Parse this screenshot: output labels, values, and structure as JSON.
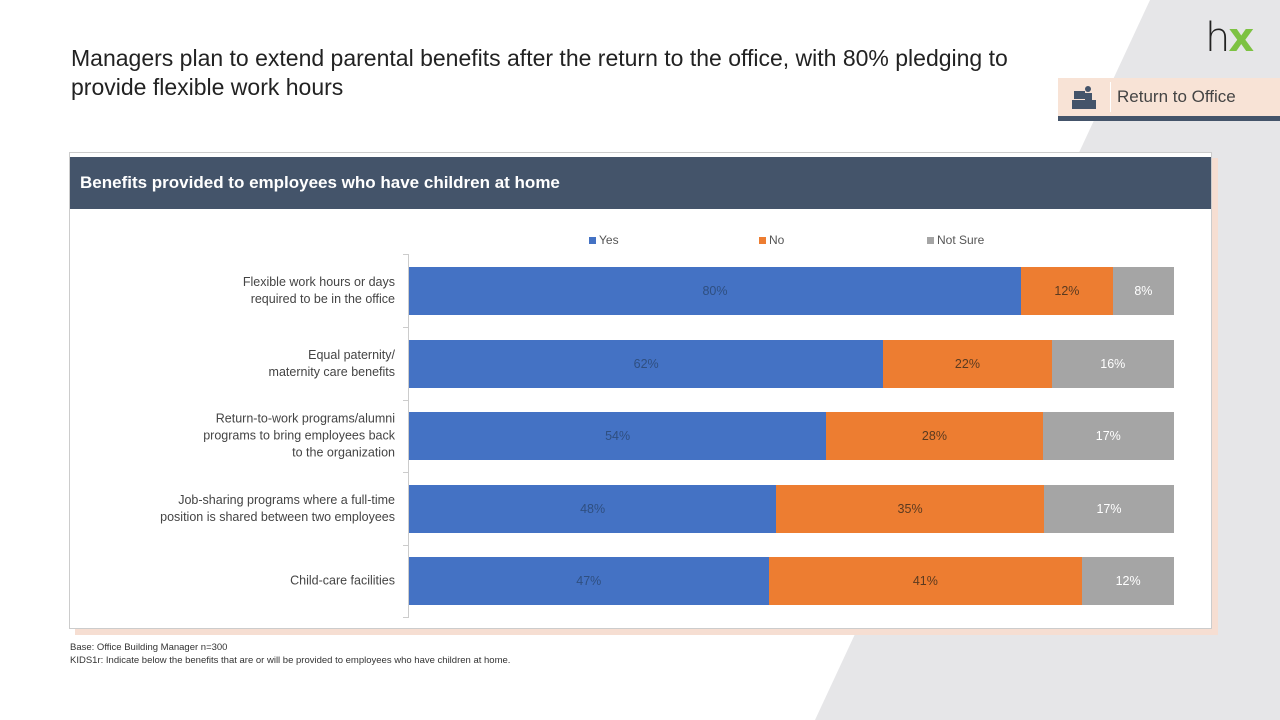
{
  "header": {
    "title": "Managers plan to extend parental benefits after the return to the office, with 80% pledging to provide flexible work hours",
    "logo_text": "hx",
    "section_tag": "Return to Office",
    "section_icon": "desk-person-icon"
  },
  "panel": {
    "title": "Benefits provided  to employees who have children at home"
  },
  "chart_data": {
    "type": "bar",
    "orientation": "horizontal",
    "stacked": true,
    "categories": [
      "Flexible work hours or days required to be in the office",
      "Equal paternity/ maternity care benefits",
      "Return-to-work programs/alumni programs to bring employees back to the organization",
      "Job-sharing programs where a full-time position is shared between two employees",
      "Child-care facilities"
    ],
    "category_lines": [
      [
        "Flexible work hours or days",
        "required to be in the office"
      ],
      [
        "Equal paternity/",
        "maternity care benefits"
      ],
      [
        "Return-to-work programs/alumni",
        "programs to bring employees back",
        "to the organization"
      ],
      [
        "Job-sharing programs where a full-time",
        "position is shared between two employees"
      ],
      [
        "Child-care facilities"
      ]
    ],
    "series": [
      {
        "name": "Yes",
        "color": "#4472c4",
        "label_color": "#2f4f80",
        "values": [
          80,
          62,
          54,
          48,
          47
        ]
      },
      {
        "name": "No",
        "color": "#ed7d31",
        "label_color": "#5a3a20",
        "values": [
          12,
          22,
          28,
          35,
          41
        ]
      },
      {
        "name": "Not Sure",
        "color": "#a5a5a5",
        "label_color": "#ffffff",
        "values": [
          8,
          16,
          17,
          17,
          12
        ]
      }
    ],
    "unit": "%",
    "legend": "top",
    "grid": false
  },
  "footer": {
    "base": "Base: Office Building Manager n=300",
    "question": "KIDS1r: Indicate below the benefits that are or will be provided to employees who have children at home."
  }
}
